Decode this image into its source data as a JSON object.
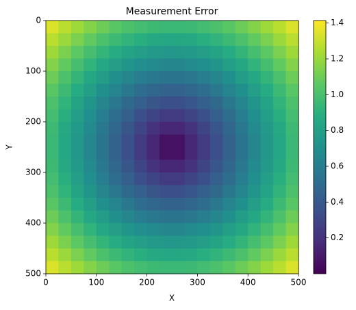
{
  "chart_data": {
    "type": "heatmap",
    "title": "Measurement Error",
    "xlabel": "X",
    "ylabel": "Y",
    "xlim": [
      0,
      500
    ],
    "ylim": [
      0,
      500
    ],
    "y_inverted": true,
    "xticks": [
      0,
      100,
      200,
      300,
      400,
      500
    ],
    "yticks": [
      0,
      100,
      200,
      300,
      400,
      500
    ],
    "colormap": "viridis",
    "colorbar": {
      "clim": [
        0,
        1.414
      ],
      "ticks": [
        0.2,
        0.4,
        0.6,
        0.8,
        {
          "value": 1,
          "label": "1.0"
        },
        1.2,
        1.4
      ]
    },
    "z": [
      [
        1.34,
        1.27,
        1.21,
        1.15,
        1.1,
        1.05,
        1.01,
        0.98,
        0.96,
        0.95,
        0.95,
        0.96,
        0.98,
        1.01,
        1.05,
        1.1,
        1.15,
        1.21,
        1.27,
        1.34
      ],
      [
        1.27,
        1.2,
        1.13,
        1.07,
        1.01,
        0.96,
        0.92,
        0.89,
        0.86,
        0.85,
        0.85,
        0.86,
        0.89,
        0.92,
        0.96,
        1.01,
        1.07,
        1.13,
        1.2,
        1.27
      ],
      [
        1.21,
        1.13,
        1.06,
        0.99,
        0.93,
        0.87,
        0.83,
        0.79,
        0.76,
        0.75,
        0.75,
        0.76,
        0.79,
        0.83,
        0.87,
        0.93,
        0.99,
        1.06,
        1.13,
        1.21
      ],
      [
        1.15,
        1.07,
        0.99,
        0.92,
        0.85,
        0.79,
        0.74,
        0.7,
        0.67,
        0.65,
        0.65,
        0.67,
        0.7,
        0.74,
        0.79,
        0.85,
        0.92,
        0.99,
        1.07,
        1.15
      ],
      [
        1.1,
        1.01,
        0.93,
        0.85,
        0.78,
        0.71,
        0.65,
        0.6,
        0.57,
        0.55,
        0.55,
        0.57,
        0.6,
        0.65,
        0.71,
        0.78,
        0.85,
        0.93,
        1.01,
        1.1
      ],
      [
        1.05,
        0.96,
        0.87,
        0.79,
        0.71,
        0.64,
        0.57,
        0.51,
        0.47,
        0.45,
        0.45,
        0.47,
        0.51,
        0.57,
        0.64,
        0.71,
        0.79,
        0.87,
        0.96,
        1.05
      ],
      [
        1.01,
        0.92,
        0.83,
        0.74,
        0.65,
        0.57,
        0.49,
        0.43,
        0.38,
        0.35,
        0.35,
        0.38,
        0.43,
        0.49,
        0.57,
        0.65,
        0.74,
        0.83,
        0.92,
        1.01
      ],
      [
        0.98,
        0.89,
        0.79,
        0.7,
        0.6,
        0.51,
        0.43,
        0.35,
        0.29,
        0.25,
        0.25,
        0.29,
        0.35,
        0.43,
        0.51,
        0.6,
        0.7,
        0.79,
        0.89,
        0.98
      ],
      [
        0.96,
        0.86,
        0.76,
        0.67,
        0.57,
        0.47,
        0.38,
        0.29,
        0.21,
        0.16,
        0.16,
        0.21,
        0.29,
        0.38,
        0.47,
        0.57,
        0.67,
        0.76,
        0.86,
        0.96
      ],
      [
        0.95,
        0.85,
        0.75,
        0.65,
        0.55,
        0.45,
        0.35,
        0.25,
        0.16,
        0.07,
        0.07,
        0.16,
        0.25,
        0.35,
        0.45,
        0.55,
        0.65,
        0.75,
        0.85,
        0.95
      ],
      [
        0.95,
        0.85,
        0.75,
        0.65,
        0.55,
        0.45,
        0.35,
        0.25,
        0.16,
        0.07,
        0.07,
        0.16,
        0.25,
        0.35,
        0.45,
        0.55,
        0.65,
        0.75,
        0.85,
        0.95
      ],
      [
        0.96,
        0.86,
        0.76,
        0.67,
        0.57,
        0.47,
        0.38,
        0.29,
        0.21,
        0.16,
        0.16,
        0.21,
        0.29,
        0.38,
        0.47,
        0.57,
        0.67,
        0.76,
        0.86,
        0.96
      ],
      [
        0.98,
        0.89,
        0.79,
        0.7,
        0.6,
        0.51,
        0.43,
        0.35,
        0.29,
        0.25,
        0.25,
        0.29,
        0.35,
        0.43,
        0.51,
        0.6,
        0.7,
        0.79,
        0.89,
        0.98
      ],
      [
        1.01,
        0.92,
        0.83,
        0.74,
        0.65,
        0.57,
        0.49,
        0.43,
        0.38,
        0.35,
        0.35,
        0.38,
        0.43,
        0.49,
        0.57,
        0.65,
        0.74,
        0.83,
        0.92,
        1.01
      ],
      [
        1.05,
        0.96,
        0.87,
        0.79,
        0.71,
        0.64,
        0.57,
        0.51,
        0.47,
        0.45,
        0.45,
        0.47,
        0.51,
        0.57,
        0.64,
        0.71,
        0.79,
        0.87,
        0.96,
        1.05
      ],
      [
        1.1,
        1.01,
        0.93,
        0.85,
        0.78,
        0.71,
        0.65,
        0.6,
        0.57,
        0.55,
        0.55,
        0.57,
        0.6,
        0.65,
        0.71,
        0.78,
        0.85,
        0.93,
        1.01,
        1.1
      ],
      [
        1.15,
        1.07,
        0.99,
        0.92,
        0.85,
        0.79,
        0.74,
        0.7,
        0.67,
        0.65,
        0.65,
        0.67,
        0.7,
        0.74,
        0.79,
        0.85,
        0.92,
        0.99,
        1.07,
        1.15
      ],
      [
        1.21,
        1.13,
        1.06,
        0.99,
        0.93,
        0.87,
        0.83,
        0.79,
        0.76,
        0.75,
        0.75,
        0.76,
        0.79,
        0.83,
        0.87,
        0.93,
        0.99,
        1.06,
        1.13,
        1.21
      ],
      [
        1.27,
        1.2,
        1.13,
        1.07,
        1.01,
        0.96,
        0.92,
        0.89,
        0.86,
        0.85,
        0.85,
        0.86,
        0.89,
        0.92,
        0.96,
        1.01,
        1.07,
        1.13,
        1.2,
        1.27
      ],
      [
        1.34,
        1.27,
        1.21,
        1.15,
        1.1,
        1.05,
        1.01,
        0.98,
        0.96,
        0.95,
        0.95,
        0.96,
        0.98,
        1.01,
        1.05,
        1.1,
        1.15,
        1.21,
        1.27,
        1.34
      ]
    ]
  }
}
